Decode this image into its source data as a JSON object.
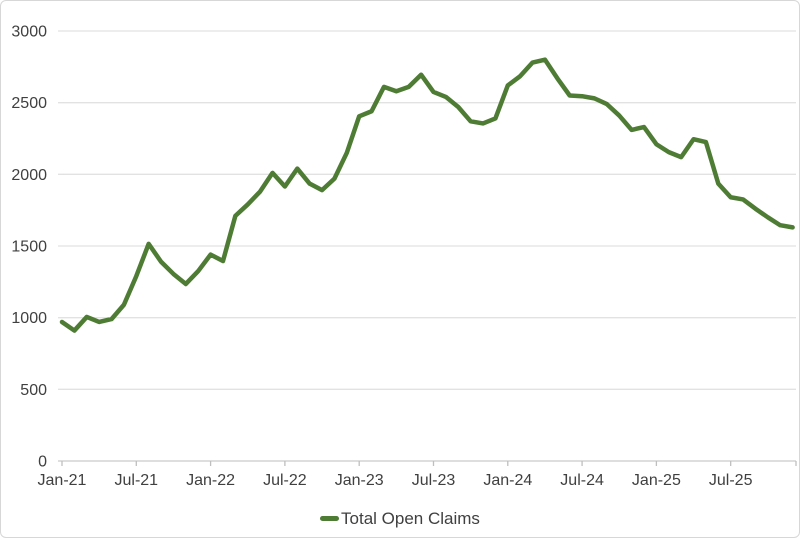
{
  "chart": {
    "background_color": "#ffffff",
    "border_color": "#d7d7d7",
    "gridline_color": "#e2e2e2",
    "axis_line_color": "#c9c9c9",
    "tick_mark_color": "#bfbfbf",
    "label_color": "#404040"
  },
  "chart_data": {
    "type": "line",
    "title": "",
    "categories": [
      "Jan-21",
      "Feb-21",
      "Mar-21",
      "Apr-21",
      "May-21",
      "Jun-21",
      "Jul-21",
      "Aug-21",
      "Sep-21",
      "Oct-21",
      "Nov-21",
      "Dec-21",
      "Jan-22",
      "Feb-22",
      "Mar-22",
      "Apr-22",
      "May-22",
      "Jun-22",
      "Jul-22",
      "Aug-22",
      "Sep-22",
      "Oct-22",
      "Nov-22",
      "Dec-22",
      "Jan-23",
      "Feb-23",
      "Mar-23",
      "Apr-23",
      "May-23",
      "Jun-23",
      "Jul-23",
      "Aug-23",
      "Sep-23",
      "Oct-23",
      "Nov-23",
      "Dec-23",
      "Jan-24",
      "Feb-24",
      "Mar-24",
      "Apr-24",
      "May-24",
      "Jun-24",
      "Jul-24",
      "Aug-24",
      "Sep-24",
      "Oct-24",
      "Nov-24",
      "Dec-24",
      "Jan-25",
      "Feb-25",
      "Mar-25",
      "Apr-25",
      "May-25",
      "Jun-25",
      "Jul-25",
      "Aug-25",
      "Sep-25",
      "Oct-25",
      "Nov-25",
      "Dec-25"
    ],
    "series": [
      {
        "name": "Total Open Claims",
        "color": "#4e7c34",
        "values": [
          970,
          910,
          1005,
          970,
          990,
          1090,
          1290,
          1515,
          1390,
          1305,
          1235,
          1325,
          1440,
          1395,
          1710,
          1790,
          1880,
          2010,
          1915,
          2040,
          1935,
          1890,
          1970,
          2150,
          2405,
          2440,
          2610,
          2580,
          2610,
          2695,
          2575,
          2540,
          2470,
          2370,
          2355,
          2390,
          2620,
          2685,
          2780,
          2800,
          2670,
          2550,
          2545,
          2530,
          2490,
          2410,
          2310,
          2330,
          2210,
          2155,
          2120,
          2245,
          2225,
          1935,
          1840,
          1825,
          1760,
          1700,
          1645,
          1630
        ]
      }
    ],
    "y_axis": {
      "min": 0,
      "max": 3000,
      "step": 500,
      "tick_labels": [
        "0",
        "500",
        "1000",
        "1500",
        "2000",
        "2500",
        "3000"
      ]
    },
    "x_axis": {
      "tick_labels": [
        "Jan-21",
        "Jul-21",
        "Jan-22",
        "Jul-22",
        "Jan-23",
        "Jul-23",
        "Jan-24",
        "Jul-24",
        "Jan-25",
        "Jul-25"
      ],
      "label_interval_months": 6
    },
    "legend": {
      "position": "bottom",
      "entries": [
        "Total Open Claims"
      ]
    },
    "grid": true
  }
}
